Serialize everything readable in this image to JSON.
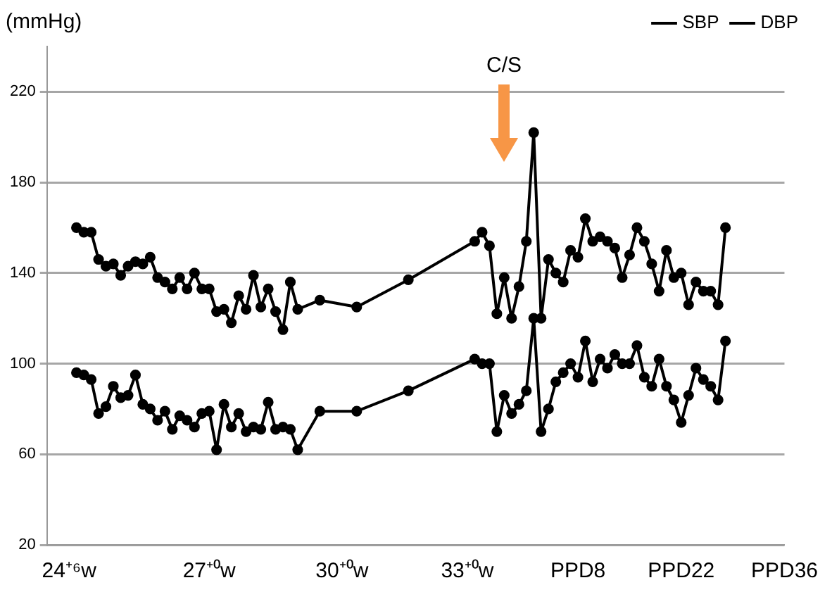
{
  "chart_data": {
    "type": "line",
    "ylabel": "(mmHg)",
    "annotations": [
      "C/S"
    ],
    "categories": [
      null,
      null,
      null,
      "24⁺⁶w",
      null,
      null,
      null,
      null,
      null,
      null,
      null,
      null,
      null,
      null,
      null,
      null,
      null,
      null,
      null,
      null,
      null,
      null,
      "27⁺⁰w",
      null,
      null,
      null,
      null,
      null,
      null,
      null,
      null,
      null,
      null,
      null,
      null,
      null,
      null,
      null,
      null,
      null,
      "30⁺⁰w",
      null,
      null,
      null,
      null,
      null,
      null,
      null,
      null,
      null,
      null,
      null,
      null,
      null,
      null,
      null,
      null,
      "33⁺⁰w",
      null,
      null,
      null,
      null,
      null,
      null,
      null,
      null,
      null,
      null,
      null,
      null,
      null,
      null,
      "PPD8",
      null,
      null,
      null,
      null,
      null,
      null,
      null,
      null,
      null,
      null,
      null,
      null,
      null,
      "PPD22",
      null,
      null,
      null,
      null,
      null,
      null,
      null,
      null,
      null,
      null,
      null,
      null,
      null,
      "PPD36"
    ],
    "series": [
      {
        "name": "SBP",
        "color": "#000000",
        "values": [
          null,
          null,
          null,
          null,
          160,
          158,
          158,
          146,
          143,
          144,
          139,
          143,
          145,
          144,
          147,
          138,
          136,
          133,
          138,
          133,
          140,
          133,
          133,
          123,
          124,
          118,
          130,
          124,
          139,
          125,
          133,
          123,
          115,
          136,
          124,
          null,
          null,
          128,
          null,
          null,
          null,
          null,
          125,
          null,
          null,
          null,
          null,
          null,
          null,
          137,
          null,
          null,
          null,
          null,
          null,
          null,
          null,
          null,
          154,
          158,
          152,
          122,
          138,
          120,
          134,
          154,
          202,
          120,
          146,
          140,
          136,
          150,
          147,
          164,
          154,
          156,
          154,
          151,
          138,
          148,
          160,
          154,
          144,
          132,
          150,
          138,
          140,
          126,
          136,
          132,
          132,
          126,
          160,
          null,
          null,
          null,
          null,
          null,
          null,
          null,
          null
        ]
      },
      {
        "name": "DBP",
        "color": "#000000",
        "values": [
          null,
          null,
          null,
          null,
          96,
          95,
          93,
          78,
          81,
          90,
          85,
          86,
          95,
          82,
          80,
          75,
          79,
          71,
          77,
          75,
          72,
          78,
          79,
          62,
          82,
          72,
          78,
          70,
          72,
          71,
          83,
          71,
          72,
          71,
          62,
          null,
          null,
          79,
          null,
          null,
          null,
          null,
          79,
          null,
          null,
          null,
          null,
          null,
          null,
          88,
          null,
          null,
          null,
          null,
          null,
          null,
          null,
          null,
          102,
          100,
          100,
          70,
          86,
          78,
          82,
          88,
          120,
          70,
          80,
          92,
          96,
          100,
          94,
          110,
          92,
          102,
          98,
          104,
          100,
          100,
          108,
          94,
          90,
          102,
          90,
          84,
          74,
          86,
          98,
          93,
          90,
          84,
          110,
          null,
          null,
          null,
          null,
          null,
          null,
          null,
          null
        ]
      }
    ],
    "ylim": [
      20,
      240
    ],
    "yticks": [
      20,
      60,
      100,
      140,
      180,
      220
    ],
    "grid": "y",
    "legend": "top right",
    "marker": "circle",
    "line_style": "solid"
  }
}
